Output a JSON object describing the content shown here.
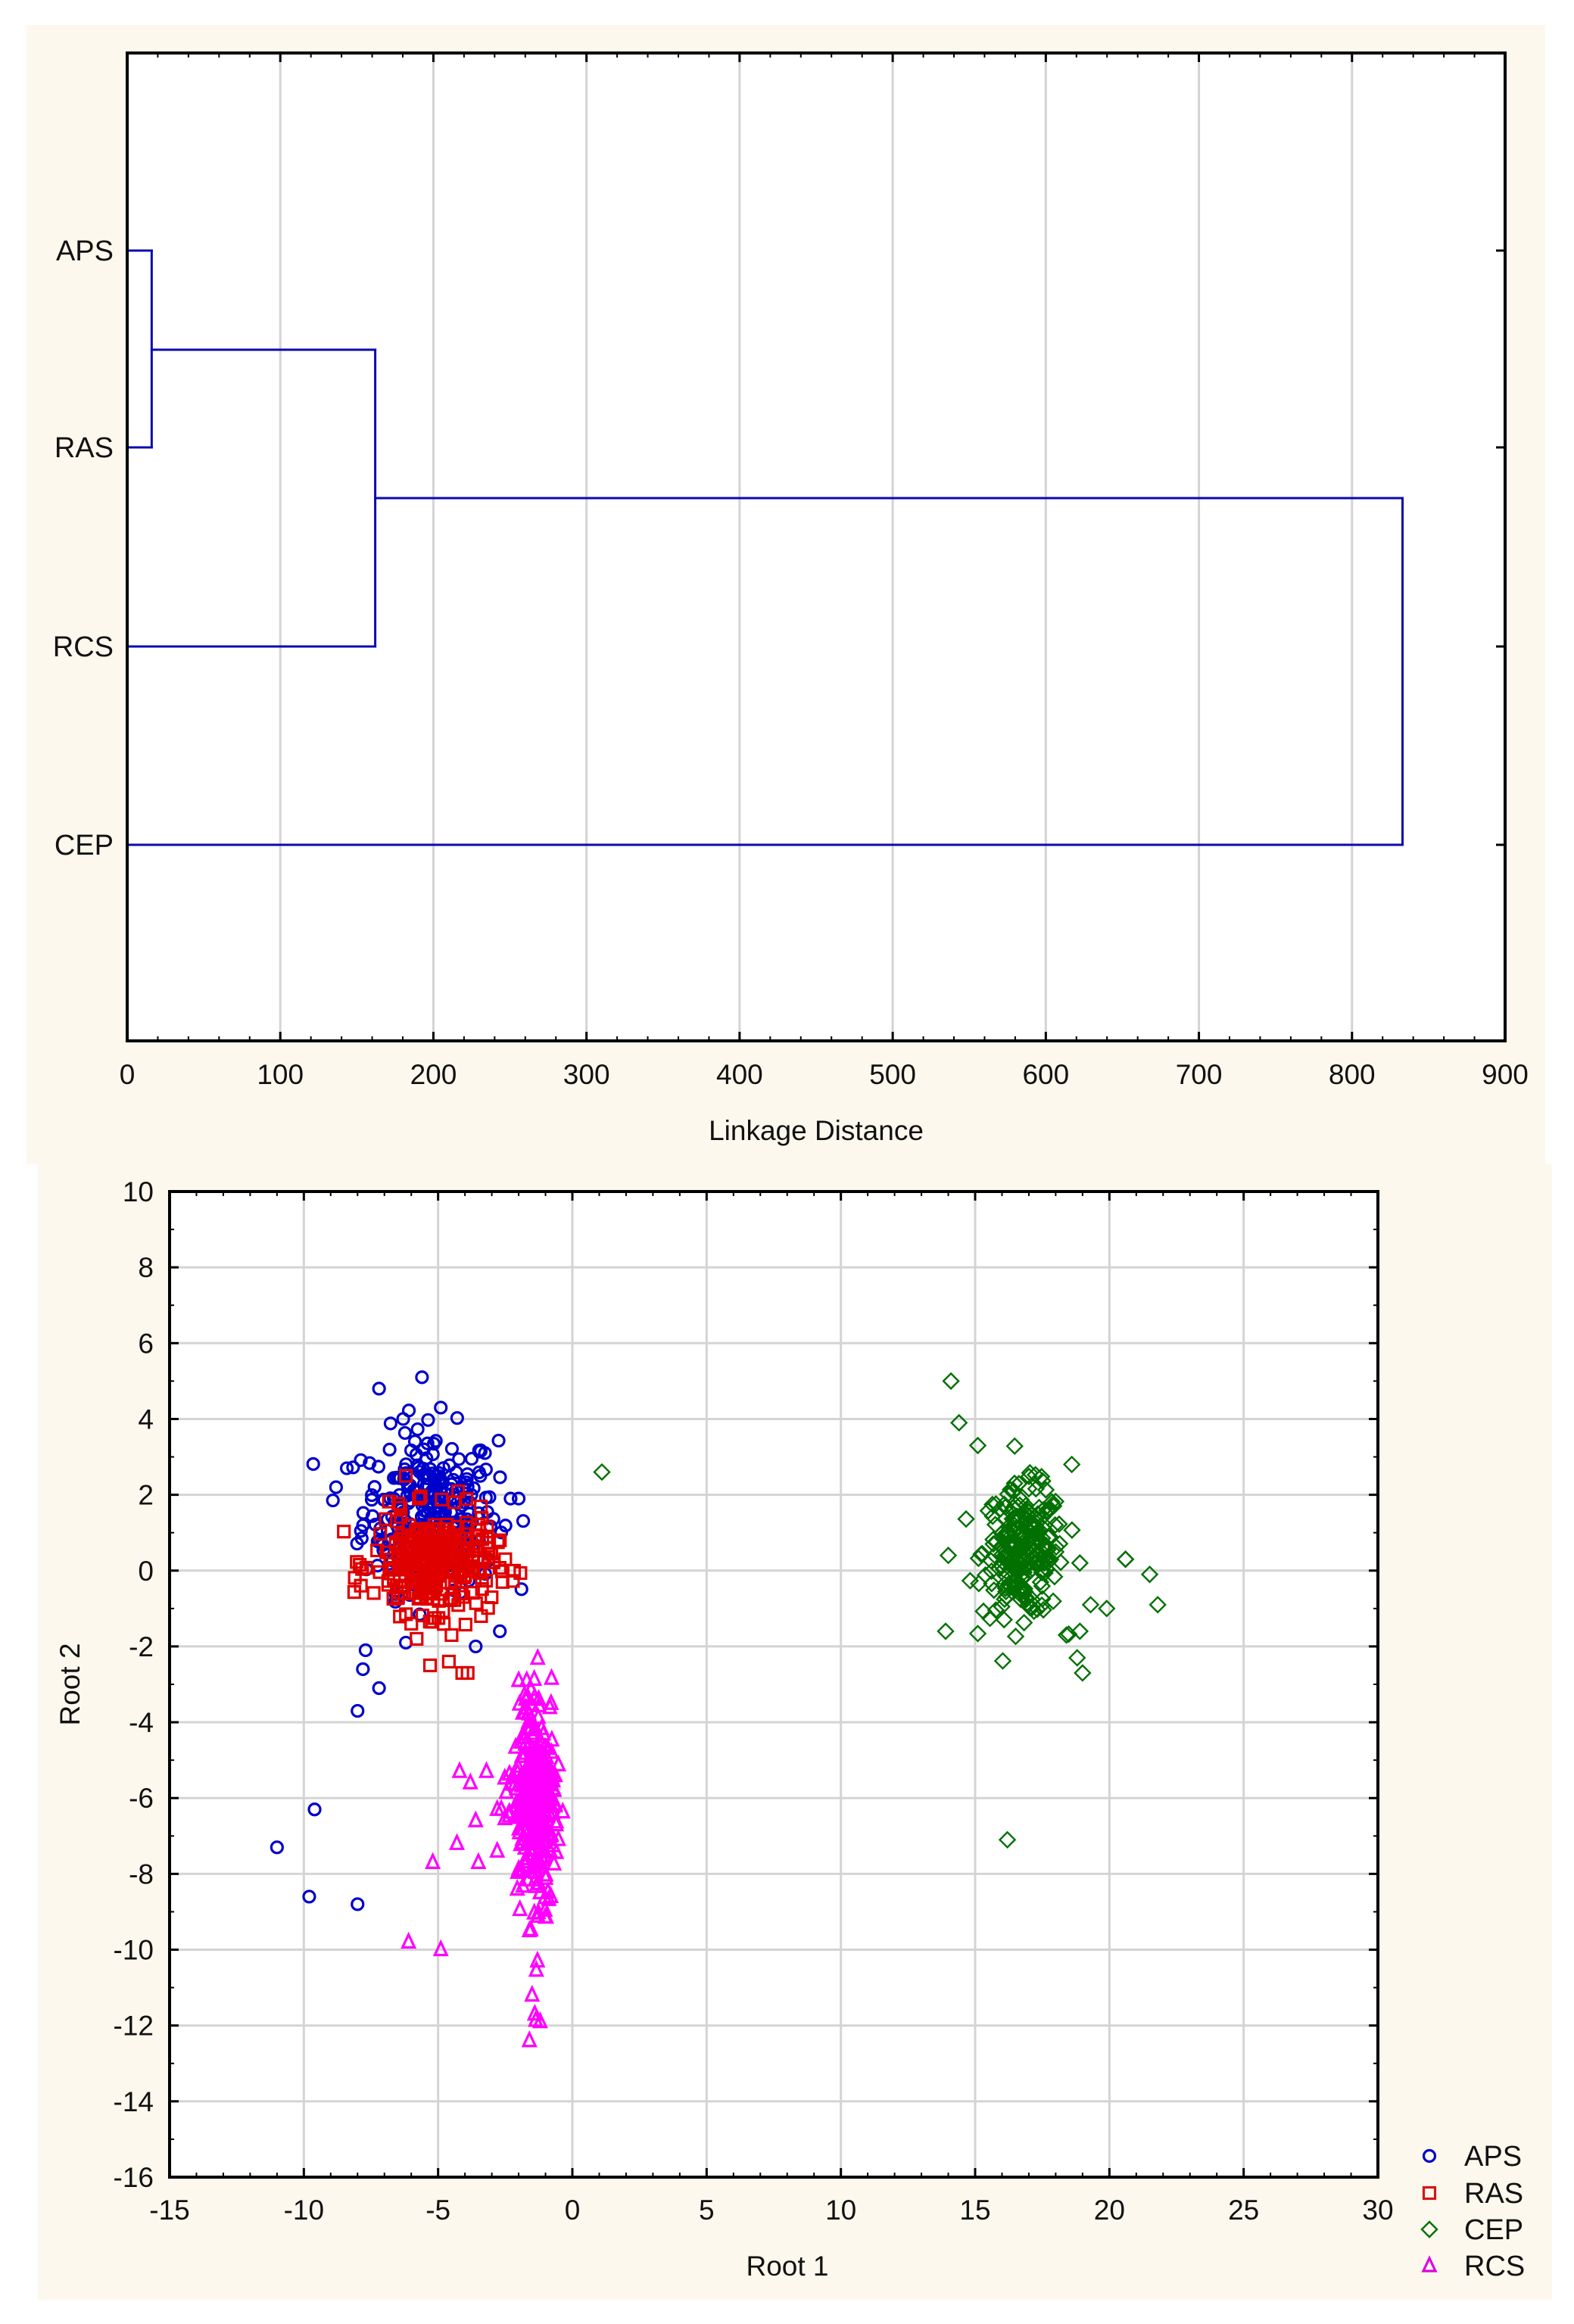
{
  "colors": {
    "panel_bg": "#fdf8ee",
    "plot_bg": "#ffffff",
    "grid": "#d4d4d4",
    "axis": "#000000",
    "dendrogram_line": "#0a0ab0"
  },
  "chart_data": [
    {
      "type": "dendrogram",
      "title": "",
      "xlabel": "Linkage Distance",
      "ylabel": "",
      "xlim": [
        0,
        900
      ],
      "xticks": [
        "0",
        "100",
        "200",
        "300",
        "400",
        "500",
        "600",
        "700",
        "800",
        "900"
      ],
      "grid": "vertical",
      "leaves": [
        "APS",
        "RAS",
        "RCS",
        "CEP"
      ],
      "merges": [
        {
          "clusters": [
            "APS",
            "RAS"
          ],
          "distance": 16
        },
        {
          "clusters": [
            "APS+RAS",
            "RCS"
          ],
          "distance": 162
        },
        {
          "clusters": [
            "APS+RAS+RCS",
            "CEP"
          ],
          "distance": 833
        }
      ]
    },
    {
      "type": "scatter",
      "title": "",
      "xlabel": "Root 1",
      "ylabel": "Root 2",
      "xlim": [
        -15,
        30
      ],
      "ylim": [
        -16,
        10
      ],
      "xticks": [
        "-15",
        "-10",
        "-5",
        "0",
        "5",
        "10",
        "15",
        "20",
        "25",
        "30"
      ],
      "yticks": [
        "10",
        "8",
        "6",
        "4",
        "2",
        "0",
        "-2",
        "-4",
        "-6",
        "-8",
        "-10",
        "-12",
        "-14",
        "-16"
      ],
      "grid": "both",
      "legend_position": "outside-bottom-right",
      "series": [
        {
          "name": "APS",
          "marker": "circle",
          "color": "#0000cc",
          "cluster": {
            "n": 260,
            "cx": -5.3,
            "cy": 1.6,
            "sx": 1.25,
            "sy": 1.05
          },
          "outliers": [
            [
              -5.6,
              5.1
            ],
            [
              -7.2,
              4.8
            ],
            [
              -4.9,
              4.3
            ],
            [
              -6.3,
              4.0
            ],
            [
              -8.4,
              2.7
            ],
            [
              -8.8,
              2.2
            ],
            [
              -2.0,
              1.9
            ],
            [
              -2.3,
              1.9
            ],
            [
              -7.7,
              -2.1
            ],
            [
              -7.8,
              -2.6
            ],
            [
              -7.2,
              -3.1
            ],
            [
              -8.0,
              -3.7
            ],
            [
              -3.6,
              -2.0
            ],
            [
              -6.2,
              -1.9
            ],
            [
              -2.7,
              -1.6
            ],
            [
              -11.0,
              -7.3
            ],
            [
              -9.6,
              -6.3
            ],
            [
              -9.8,
              -8.6
            ],
            [
              -8.0,
              -8.8
            ]
          ]
        },
        {
          "name": "RAS",
          "marker": "square",
          "color": "#e00000",
          "cluster": {
            "n": 300,
            "cx": -5.2,
            "cy": 0.2,
            "sx": 1.1,
            "sy": 0.65
          },
          "outliers": [
            [
              -6.2,
              2.5
            ],
            [
              -4.4,
              1.8
            ],
            [
              -3.2,
              0.9
            ],
            [
              -2.7,
              0.8
            ],
            [
              -2.5,
              0.3
            ],
            [
              -2.6,
              -0.3
            ],
            [
              -5.8,
              -1.8
            ],
            [
              -4.5,
              -1.7
            ],
            [
              -5.3,
              -2.5
            ],
            [
              -4.6,
              -2.4
            ],
            [
              -4.1,
              -2.7
            ],
            [
              -3.9,
              -2.7
            ],
            [
              -6.0,
              -1.4
            ],
            [
              -3.4,
              -1.2
            ]
          ]
        },
        {
          "name": "CEP",
          "marker": "diamond",
          "color": "#007000",
          "cluster": {
            "n": 240,
            "cx": 16.8,
            "cy": 0.5,
            "sx": 0.75,
            "sy": 0.85
          },
          "outliers": [
            [
              1.1,
              2.6
            ],
            [
              14.1,
              5.0
            ],
            [
              14.4,
              3.9
            ],
            [
              15.1,
              3.3
            ],
            [
              18.6,
              2.8
            ],
            [
              14.0,
              0.4
            ],
            [
              13.9,
              -1.6
            ],
            [
              18.9,
              0.2
            ],
            [
              19.3,
              -0.9
            ],
            [
              20.6,
              0.3
            ],
            [
              20.6,
              0.3
            ],
            [
              21.5,
              -0.1
            ],
            [
              21.8,
              -0.9
            ],
            [
              19.9,
              -1.0
            ],
            [
              18.9,
              -1.6
            ],
            [
              18.4,
              -1.7
            ],
            [
              18.8,
              -2.3
            ],
            [
              19.0,
              -2.7
            ],
            [
              16.2,
              -7.1
            ]
          ]
        },
        {
          "name": "RCS",
          "marker": "triangle",
          "color": "#ff00ff",
          "cluster": {
            "n": 320,
            "cx": -1.4,
            "cy": -6.0,
            "sx": 0.45,
            "sy": 1.3
          },
          "outliers": [
            [
              -2.0,
              -2.9
            ],
            [
              -1.7,
              -2.9
            ],
            [
              -4.2,
              -5.3
            ],
            [
              -3.8,
              -5.6
            ],
            [
              -3.2,
              -5.3
            ],
            [
              -2.8,
              -6.3
            ],
            [
              -3.6,
              -6.6
            ],
            [
              -4.3,
              -7.2
            ],
            [
              -5.2,
              -7.7
            ],
            [
              -3.5,
              -7.7
            ],
            [
              -2.8,
              -7.4
            ],
            [
              -6.1,
              -9.8
            ],
            [
              -4.9,
              -10.0
            ],
            [
              -1.6,
              -9.5
            ],
            [
              -1.3,
              -10.3
            ],
            [
              -1.5,
              -11.2
            ],
            [
              -1.4,
              -11.7
            ],
            [
              -1.6,
              -12.4
            ],
            [
              -1.2,
              -11.9
            ],
            [
              -0.8,
              -8.6
            ]
          ]
        }
      ]
    }
  ],
  "dendrogram": {
    "axis_title": "Linkage Distance",
    "row_labels": [
      "APS",
      "RAS",
      "RCS",
      "CEP"
    ]
  },
  "scatter": {
    "x_axis_title": "Root 1",
    "y_axis_title": "Root 2",
    "legend": [
      {
        "label": "APS",
        "marker": "circle",
        "color": "#0000cc"
      },
      {
        "label": "RAS",
        "marker": "square",
        "color": "#d01818"
      },
      {
        "label": "CEP",
        "marker": "diamond",
        "color": "#007000"
      },
      {
        "label": "RCS",
        "marker": "triangle",
        "color": "#e000e0"
      }
    ]
  }
}
